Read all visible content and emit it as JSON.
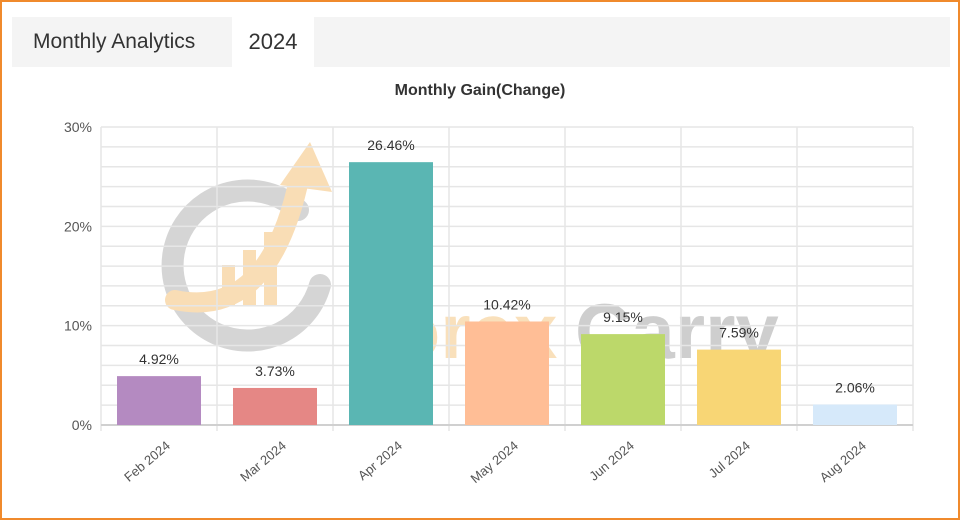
{
  "header": {
    "title": "Monthly Analytics",
    "tab_label": "2024"
  },
  "watermark": {
    "word1": "Forex",
    "word2": "Carry"
  },
  "colors": {
    "border": "#f08a2c",
    "header_bg": "#f4f4f4",
    "grid": "#e4e4e4",
    "watermark_orange": "#f5c27a",
    "watermark_gray": "#9e9e9e"
  },
  "chart_data": {
    "type": "bar",
    "title": "Monthly Gain(Change)",
    "categories": [
      "Feb 2024",
      "Mar 2024",
      "Apr 2024",
      "May 2024",
      "Jun 2024",
      "Jul 2024",
      "Aug 2024"
    ],
    "values": [
      4.92,
      3.73,
      26.46,
      10.42,
      9.15,
      7.59,
      2.06
    ],
    "data_labels": [
      "4.92%",
      "3.73%",
      "26.46%",
      "10.42%",
      "9.15%",
      "7.59%",
      "2.06%"
    ],
    "bar_colors": [
      "#b48ac1",
      "#e58785",
      "#5ab6b3",
      "#ffbe96",
      "#bcd86a",
      "#f8d675",
      "#d6e9fa"
    ],
    "yticks": [
      0,
      10,
      20,
      30
    ],
    "ytick_labels": [
      "0%",
      "10%",
      "20%",
      "30%"
    ],
    "ylim": [
      0,
      30
    ],
    "grid": true
  }
}
